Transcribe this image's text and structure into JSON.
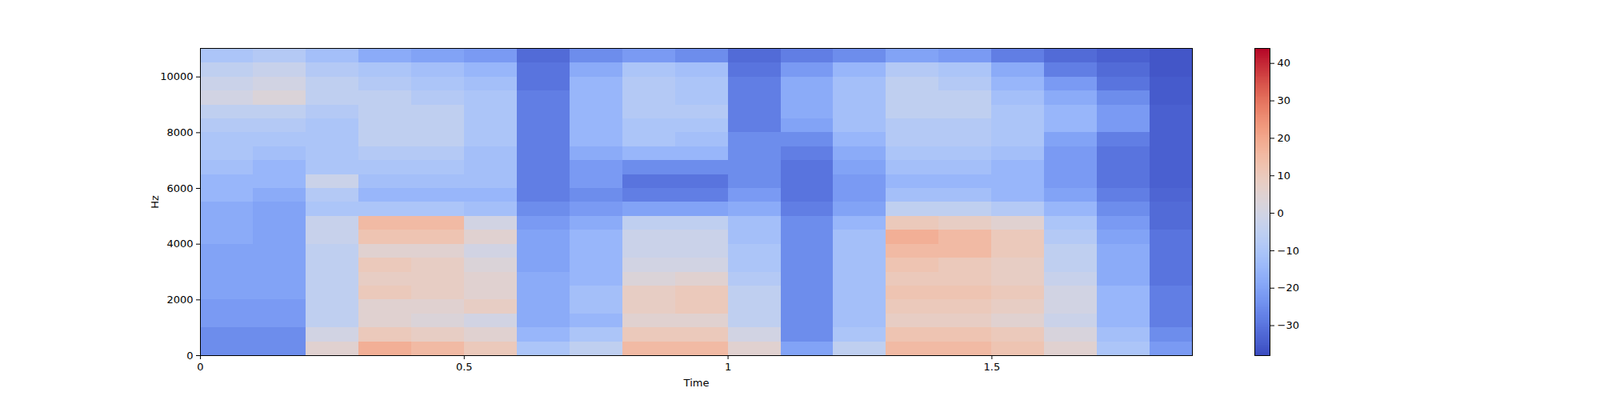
{
  "chart_data": {
    "type": "heatmap",
    "xlabel": "Time",
    "ylabel": "Hz",
    "xlim": [
      0,
      1.88
    ],
    "ylim": [
      0,
      11025
    ],
    "xticks": [
      0,
      0.5,
      1,
      1.5
    ],
    "yticks": [
      0,
      2000,
      4000,
      6000,
      8000,
      10000
    ],
    "x_edges": [
      0,
      0.1,
      0.2,
      0.3,
      0.4,
      0.5,
      0.6,
      0.7,
      0.8,
      0.9,
      1.0,
      1.1,
      1.2,
      1.3,
      1.4,
      1.5,
      1.6,
      1.7,
      1.8,
      1.88
    ],
    "y_edges": [
      0,
      500,
      1000,
      1500,
      2000,
      2500,
      3000,
      3500,
      4000,
      4500,
      5000,
      5500,
      6000,
      6500,
      7000,
      7500,
      8000,
      8500,
      9000,
      9500,
      10000,
      10500,
      11025
    ],
    "values": [
      [
        -25,
        -25,
        5,
        18,
        15,
        10,
        -10,
        -5,
        15,
        15,
        5,
        -20,
        -5,
        15,
        15,
        12,
        5,
        -10,
        -22
      ],
      [
        -25,
        -25,
        0,
        10,
        8,
        5,
        -15,
        -10,
        10,
        10,
        0,
        -25,
        -10,
        12,
        12,
        10,
        2,
        -12,
        -25
      ],
      [
        -22,
        -22,
        -5,
        5,
        3,
        0,
        -18,
        -15,
        5,
        5,
        -5,
        -25,
        -12,
        8,
        8,
        5,
        -2,
        -15,
        -28
      ],
      [
        -22,
        -22,
        -5,
        5,
        5,
        8,
        -18,
        -12,
        8,
        10,
        -5,
        -25,
        -12,
        10,
        10,
        8,
        0,
        -15,
        -28
      ],
      [
        -20,
        -20,
        -5,
        10,
        8,
        5,
        -18,
        -12,
        8,
        10,
        -5,
        -25,
        -12,
        12,
        12,
        10,
        0,
        -15,
        -28
      ],
      [
        -20,
        -20,
        -5,
        8,
        8,
        5,
        -18,
        -15,
        3,
        5,
        -8,
        -25,
        -12,
        10,
        10,
        8,
        -3,
        -18,
        -30
      ],
      [
        -20,
        -20,
        -5,
        10,
        8,
        3,
        -20,
        -15,
        0,
        0,
        -10,
        -25,
        -12,
        12,
        10,
        8,
        -5,
        -18,
        -30
      ],
      [
        -20,
        -20,
        -5,
        5,
        5,
        0,
        -20,
        -15,
        -2,
        -2,
        -10,
        -25,
        -12,
        15,
        15,
        10,
        -5,
        -18,
        -30
      ],
      [
        -18,
        -20,
        -3,
        12,
        12,
        5,
        -20,
        -15,
        -2,
        -2,
        -12,
        -25,
        -12,
        18,
        15,
        10,
        -8,
        -20,
        -30
      ],
      [
        -18,
        -20,
        -3,
        15,
        15,
        0,
        -22,
        -18,
        -5,
        -5,
        -12,
        -25,
        -15,
        10,
        8,
        5,
        -10,
        -22,
        -32
      ],
      [
        -18,
        -20,
        -10,
        -10,
        -10,
        -12,
        -25,
        -22,
        -20,
        -20,
        -18,
        -28,
        -20,
        -5,
        -5,
        -8,
        -15,
        -25,
        -32
      ],
      [
        -15,
        -18,
        -8,
        -15,
        -15,
        -15,
        -28,
        -25,
        -28,
        -28,
        -22,
        -30,
        -22,
        -12,
        -12,
        -15,
        -20,
        -28,
        -33
      ],
      [
        -15,
        -15,
        -2,
        -12,
        -12,
        -12,
        -28,
        -22,
        -30,
        -30,
        -25,
        -30,
        -22,
        -15,
        -15,
        -15,
        -22,
        -30,
        -34
      ],
      [
        -12,
        -15,
        -10,
        -10,
        -10,
        -12,
        -28,
        -22,
        -25,
        -25,
        -25,
        -30,
        -20,
        -12,
        -12,
        -15,
        -22,
        -30,
        -34
      ],
      [
        -10,
        -12,
        -10,
        -8,
        -8,
        -12,
        -28,
        -18,
        -15,
        -15,
        -25,
        -28,
        -18,
        -10,
        -10,
        -12,
        -22,
        -30,
        -34
      ],
      [
        -10,
        -10,
        -10,
        -5,
        -5,
        -10,
        -28,
        -15,
        -10,
        -12,
        -25,
        -25,
        -15,
        -8,
        -8,
        -10,
        -20,
        -28,
        -34
      ],
      [
        -8,
        -8,
        -10,
        -5,
        -5,
        -10,
        -28,
        -15,
        -10,
        -10,
        -28,
        -20,
        -12,
        -8,
        -8,
        -10,
        -15,
        -22,
        -34
      ],
      [
        -5,
        -5,
        -8,
        -5,
        -5,
        -10,
        -28,
        -15,
        -8,
        -8,
        -28,
        -18,
        -12,
        -5,
        -5,
        -10,
        -15,
        -22,
        -34
      ],
      [
        0,
        3,
        -5,
        -5,
        -8,
        -10,
        -28,
        -15,
        -8,
        -10,
        -28,
        -18,
        -12,
        -5,
        -5,
        -12,
        -18,
        -25,
        -35
      ],
      [
        -2,
        0,
        -5,
        -8,
        -10,
        -12,
        -30,
        -15,
        -8,
        -10,
        -28,
        -18,
        -12,
        -5,
        -8,
        -15,
        -22,
        -30,
        -35
      ],
      [
        -5,
        -3,
        -8,
        -10,
        -12,
        -15,
        -30,
        -18,
        -10,
        -12,
        -30,
        -22,
        -15,
        -8,
        -10,
        -18,
        -28,
        -32,
        -36
      ],
      [
        -10,
        -8,
        -12,
        -18,
        -20,
        -22,
        -32,
        -25,
        -22,
        -25,
        -32,
        -28,
        -25,
        -20,
        -22,
        -28,
        -32,
        -34,
        -36
      ]
    ],
    "colorbar": {
      "range": [
        -38,
        44
      ],
      "ticks": [
        {
          "value": -30,
          "label": "−30"
        },
        {
          "value": -20,
          "label": "−20"
        },
        {
          "value": -10,
          "label": "−10"
        },
        0,
        10,
        20,
        30,
        40
      ]
    }
  }
}
